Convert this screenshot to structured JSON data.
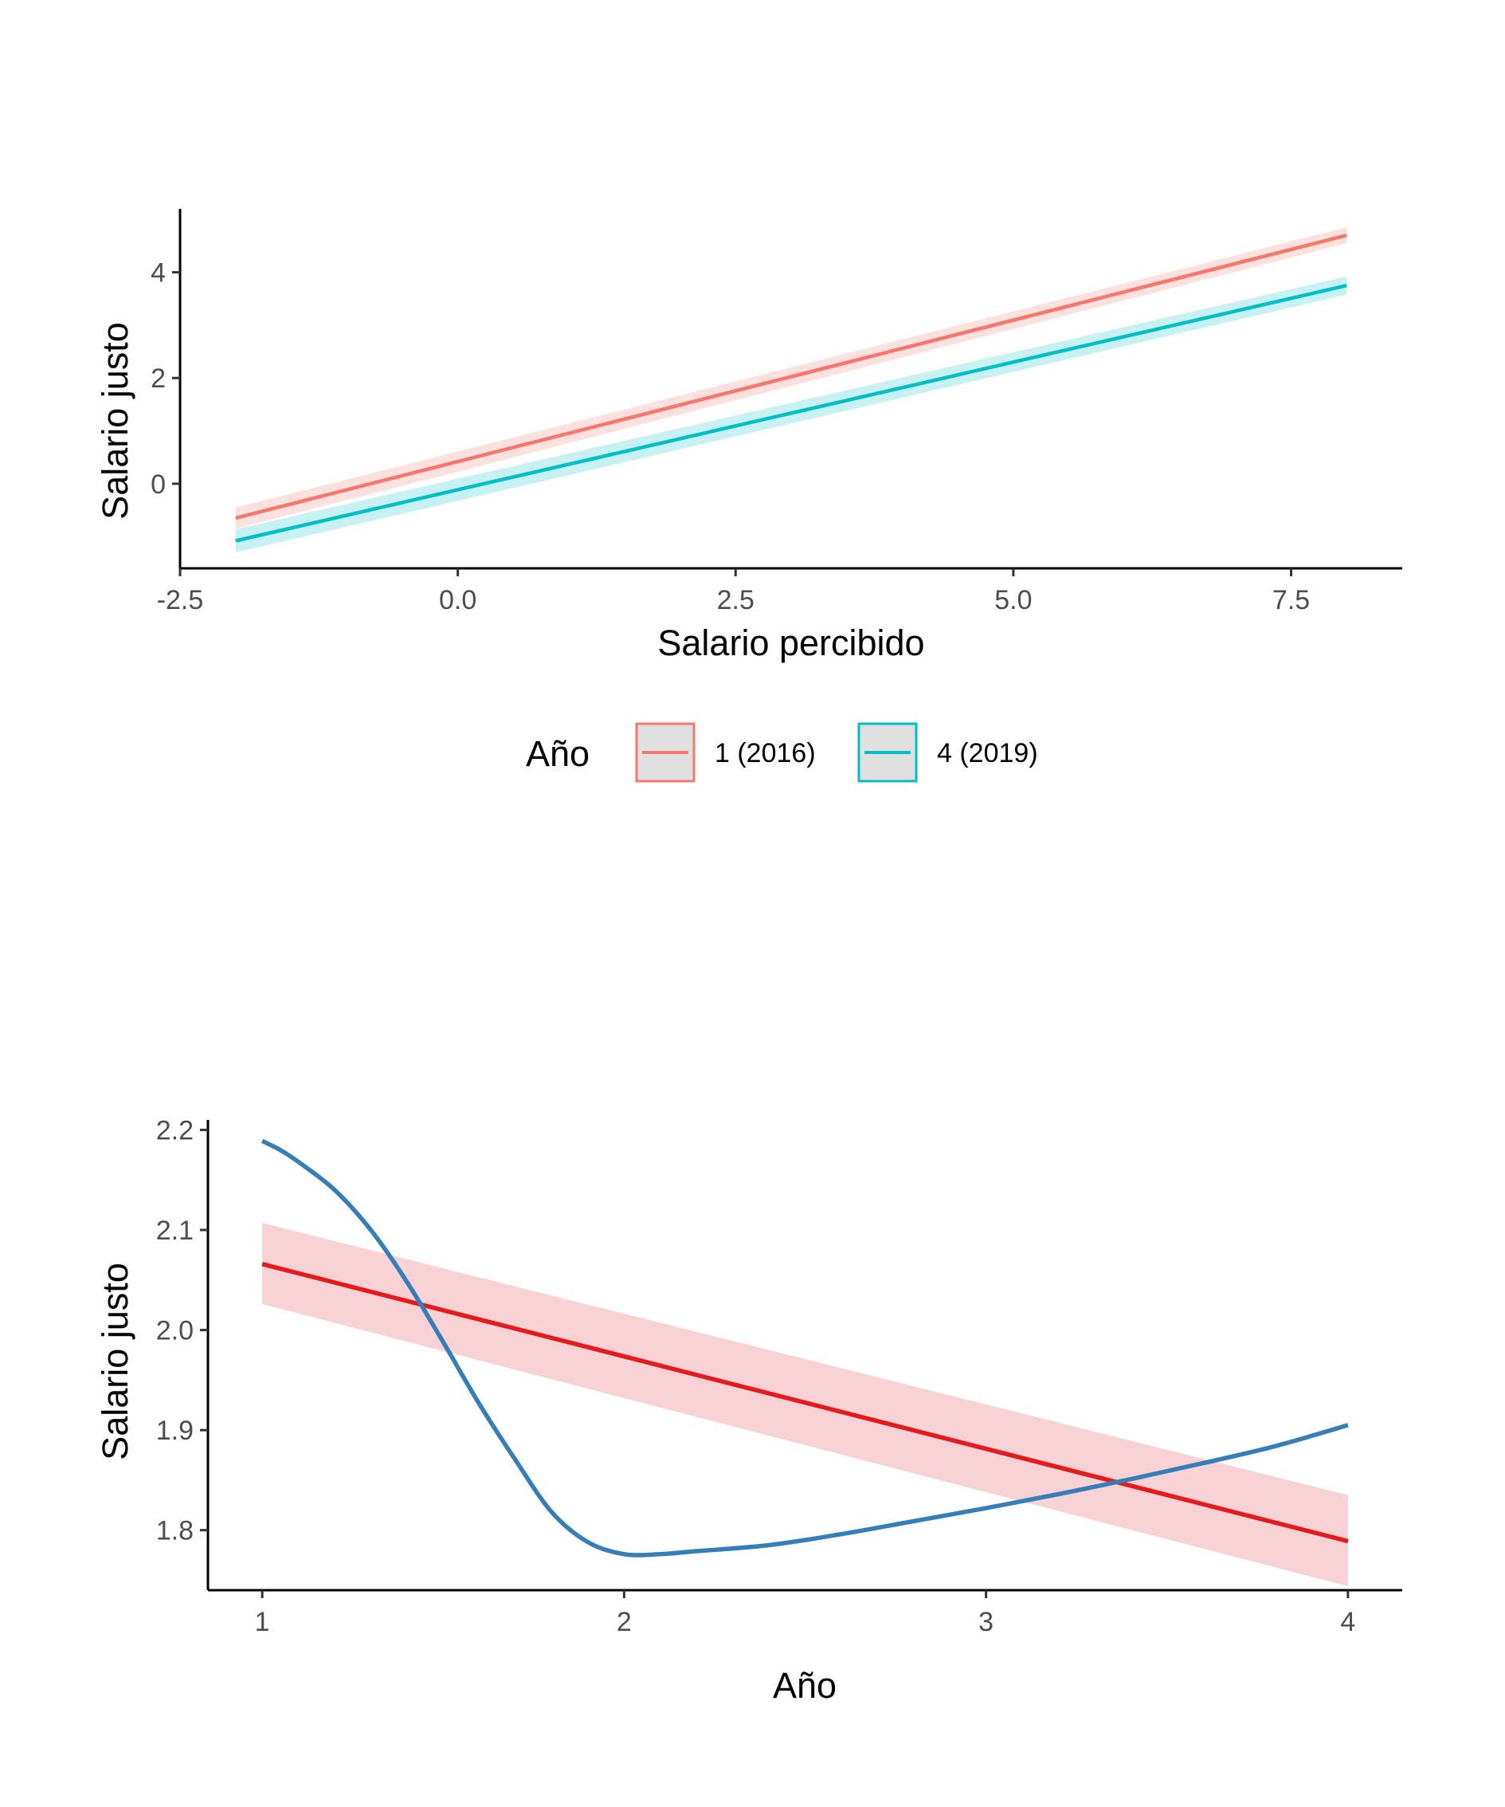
{
  "chart_data": [
    {
      "type": "line",
      "title": "",
      "xlabel": "Salario percibido",
      "ylabel": "Salario justo",
      "xlim": [
        -2.5,
        8.5
      ],
      "ylim": [
        -1.6,
        5.2
      ],
      "xticks": [
        -2.5,
        0.0,
        2.5,
        5.0,
        7.5
      ],
      "xtick_labels": [
        "-2.5",
        "0.0",
        "2.5",
        "5.0",
        "7.5"
      ],
      "yticks": [
        0,
        2,
        4
      ],
      "ytick_labels": [
        "0",
        "2",
        "4"
      ],
      "grid": false,
      "legend": {
        "title": "Año",
        "position": "bottom"
      },
      "series": [
        {
          "name": "1 (2016)",
          "color": "#F8766D",
          "x": [
            -2,
            8
          ],
          "y": [
            -0.65,
            4.7
          ],
          "ci_lower": [
            -0.85,
            4.55
          ],
          "ci_upper": [
            -0.45,
            4.85
          ]
        },
        {
          "name": "4 (2019)",
          "color": "#00BFC4",
          "x": [
            -2,
            8
          ],
          "y": [
            -1.08,
            3.75
          ],
          "ci_lower": [
            -1.3,
            3.58
          ],
          "ci_upper": [
            -0.86,
            3.92
          ]
        }
      ]
    },
    {
      "type": "line",
      "title": "",
      "xlabel": "Año",
      "ylabel": "Salario justo",
      "xlim": [
        0.85,
        4.15
      ],
      "ylim": [
        1.74,
        2.21
      ],
      "xticks": [
        1,
        2,
        3,
        4
      ],
      "xtick_labels": [
        "1",
        "2",
        "3",
        "4"
      ],
      "yticks": [
        1.8,
        1.9,
        2.0,
        2.1,
        2.2
      ],
      "ytick_labels": [
        "1.8",
        "1.9",
        "2.0",
        "2.1",
        "2.2"
      ],
      "grid": false,
      "series": [
        {
          "color": "#E41A1C",
          "band_color": "#F4A6AE",
          "x": [
            1,
            4
          ],
          "y": [
            2.066,
            1.789
          ],
          "ci_lower": [
            2.026,
            1.744
          ],
          "ci_upper": [
            2.107,
            1.835
          ]
        },
        {
          "color": "#377EB8",
          "x": [
            1.0,
            1.05,
            1.1,
            1.2,
            1.3,
            1.4,
            1.5,
            1.6,
            1.7,
            1.8,
            1.9,
            2.0,
            2.1,
            2.2,
            2.4,
            2.6,
            2.8,
            3.0,
            3.2,
            3.4,
            3.6,
            3.8,
            4.0
          ],
          "y": [
            2.189,
            2.18,
            2.168,
            2.14,
            2.1,
            2.048,
            1.988,
            1.926,
            1.87,
            1.818,
            1.788,
            1.776,
            1.776,
            1.779,
            1.785,
            1.796,
            1.809,
            1.822,
            1.836,
            1.851,
            1.867,
            1.884,
            1.905
          ]
        }
      ]
    }
  ]
}
